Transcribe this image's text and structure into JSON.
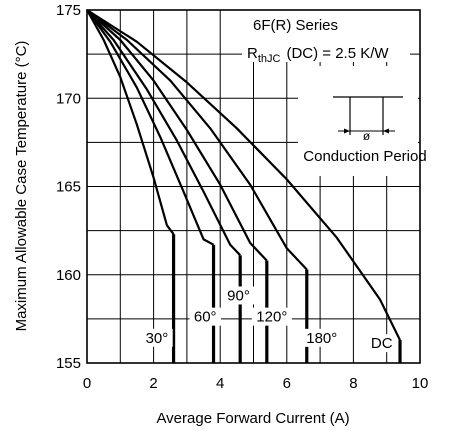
{
  "chart_data": {
    "type": "line",
    "xlabel": "Average Forward Current (A)",
    "ylabel": "Maximum Allowable Case Temperature (°C)",
    "xlim": [
      0,
      10
    ],
    "ylim": [
      155,
      175
    ],
    "x_ticks": [
      "0",
      "2",
      "4",
      "6",
      "8",
      "10"
    ],
    "y_ticks": [
      "155",
      "160",
      "165",
      "170",
      "175"
    ],
    "grid": true,
    "annotations": {
      "series_title": "6F(R) Series",
      "rth_main": "R",
      "rth_sub": "thJC",
      "rth_rest": "(DC) = 2.5 K/W",
      "inset_symbol": "ø",
      "inset_label": "Conduction Period"
    },
    "series": [
      {
        "label": "30°",
        "x": [
          0,
          0.5,
          1.0,
          1.5,
          2.0,
          2.4,
          2.6,
          2.6
        ],
        "y": [
          175,
          173.3,
          171.2,
          168.5,
          165.5,
          162.8,
          162.3,
          155
        ]
      },
      {
        "label": "60°",
        "x": [
          0,
          0.7,
          1.5,
          2.2,
          2.9,
          3.5,
          3.8,
          3.8
        ],
        "y": [
          175,
          173.2,
          170.6,
          167.8,
          164.7,
          162.0,
          161.7,
          155
        ]
      },
      {
        "label": "90°",
        "x": [
          0,
          0.8,
          1.8,
          2.7,
          3.5,
          4.3,
          4.6,
          4.6
        ],
        "y": [
          175,
          173.3,
          170.5,
          167.6,
          164.7,
          161.7,
          161.1,
          155
        ]
      },
      {
        "label": "120°",
        "x": [
          0,
          1.0,
          2.0,
          3.0,
          4.0,
          4.9,
          5.4,
          5.4
        ],
        "y": [
          175,
          173.3,
          171.0,
          168.2,
          165.1,
          161.8,
          160.8,
          155
        ]
      },
      {
        "label": "180°",
        "x": [
          0,
          1.2,
          2.5,
          3.7,
          4.9,
          6.0,
          6.6,
          6.6
        ],
        "y": [
          175,
          173.3,
          171.0,
          168.3,
          165.1,
          161.5,
          160.3,
          155
        ]
      },
      {
        "label": "DC",
        "x": [
          0,
          1.5,
          3.0,
          4.5,
          6.0,
          7.5,
          8.8,
          9.4,
          9.4
        ],
        "y": [
          175,
          173.2,
          170.9,
          168.3,
          165.4,
          162.1,
          158.6,
          156.3,
          155
        ]
      }
    ],
    "series_label_positions_data": [
      {
        "label": "30°",
        "x": 2.1,
        "y": 156.2
      },
      {
        "label": "60°",
        "x": 3.55,
        "y": 157.4
      },
      {
        "label": "90°",
        "x": 4.55,
        "y": 158.6
      },
      {
        "label": "120°",
        "x": 5.55,
        "y": 157.4
      },
      {
        "label": "180°",
        "x": 7.05,
        "y": 156.2
      },
      {
        "label": "DC",
        "x": 8.85,
        "y": 155.9
      }
    ]
  }
}
